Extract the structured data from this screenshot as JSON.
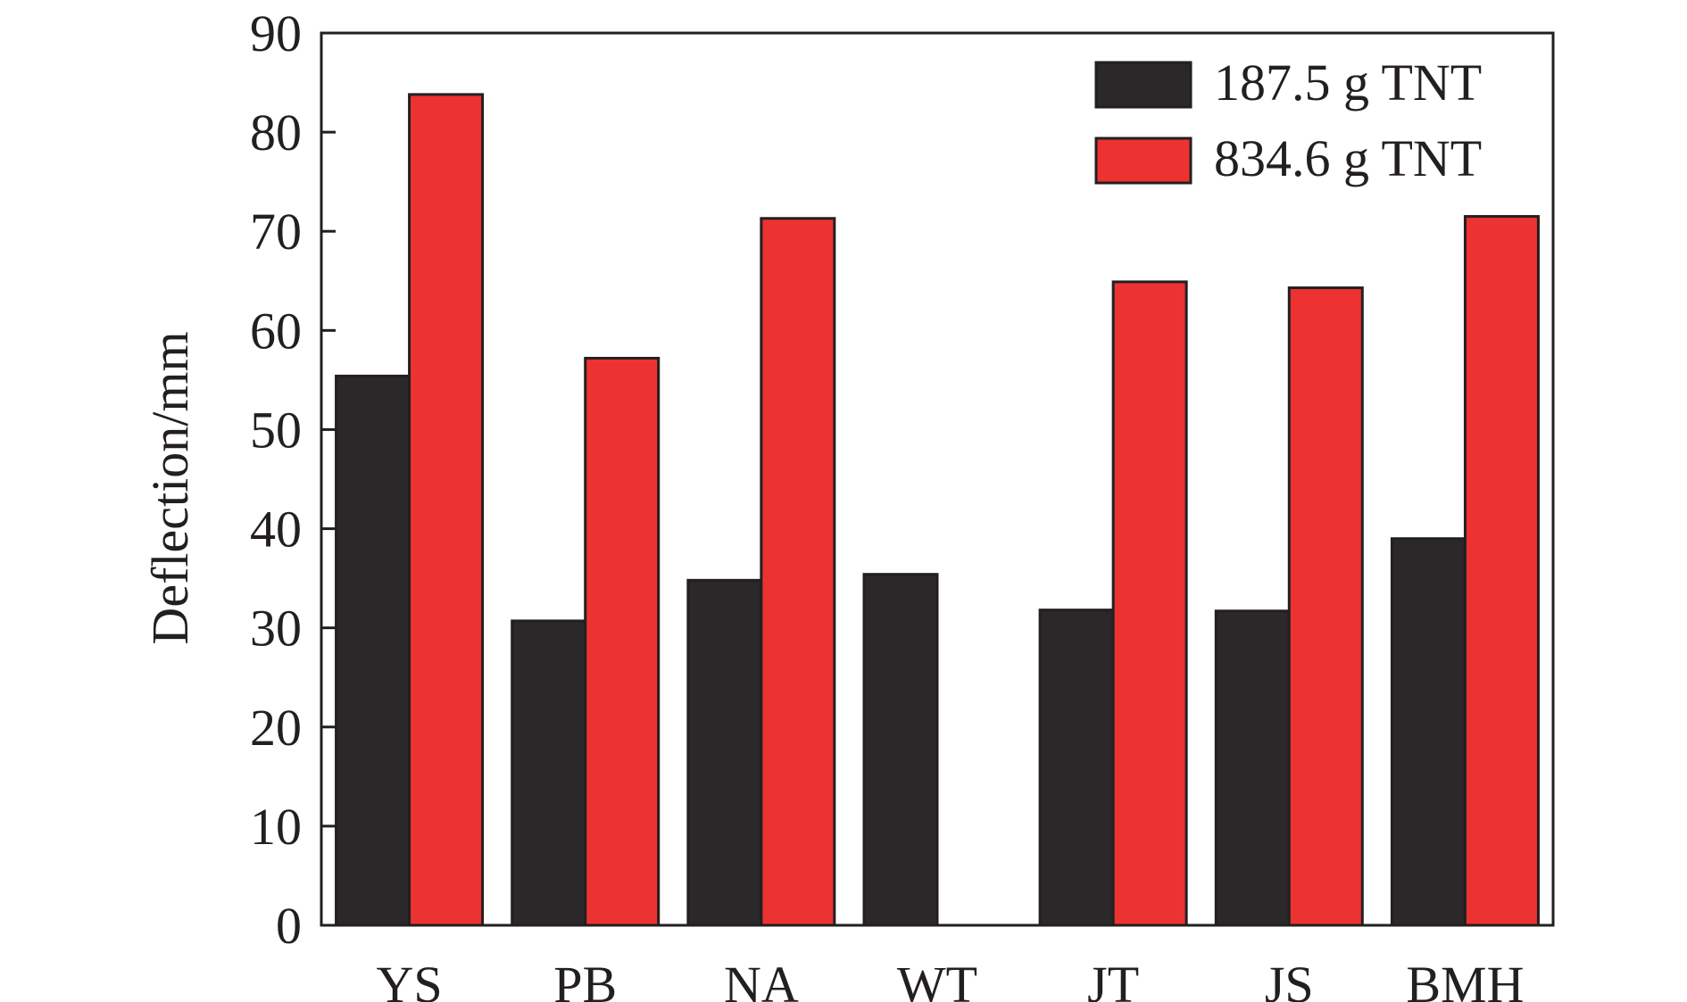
{
  "chart_data": {
    "type": "bar",
    "categories": [
      "YS",
      "PB",
      "NA",
      "WT",
      "JT",
      "JS",
      "BMH"
    ],
    "series": [
      {
        "name": "187.5 g TNT",
        "color": "#2b2829",
        "values": [
          55.4,
          30.7,
          34.8,
          35.4,
          31.8,
          31.7,
          39.0
        ]
      },
      {
        "name": "834.6 g TNT",
        "color": "#ec3331",
        "values": [
          83.8,
          57.2,
          71.3,
          0,
          64.9,
          64.3,
          71.5
        ]
      }
    ],
    "ylabel": "Deflection/mm",
    "xlabel": "",
    "ylim": [
      0,
      90
    ],
    "yticks": [
      0,
      10,
      20,
      30,
      40,
      50,
      60,
      70,
      80,
      90
    ],
    "legend_position": "top-right",
    "grid": false
  }
}
